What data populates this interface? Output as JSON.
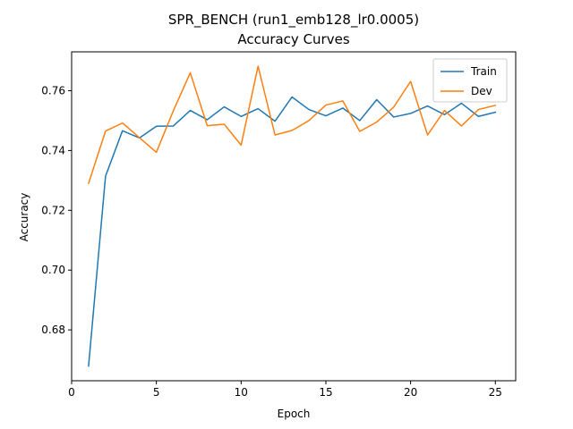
{
  "chart_data": {
    "type": "line",
    "title": "SPR_BENCH (run1_emb128_lr0.0005)",
    "subtitle": "Accuracy Curves",
    "xlabel": "Epoch",
    "ylabel": "Accuracy",
    "xlim": [
      0,
      26.2
    ],
    "ylim": [
      0.663,
      0.773
    ],
    "xticks": [
      0,
      5,
      10,
      15,
      20,
      25
    ],
    "yticks": [
      0.68,
      0.7,
      0.72,
      0.74,
      0.76
    ],
    "xtick_labels": [
      "0",
      "5",
      "10",
      "15",
      "20",
      "25"
    ],
    "ytick_labels": [
      "0.68",
      "0.70",
      "0.72",
      "0.74",
      "0.76"
    ],
    "grid": false,
    "legend_position": "top-right",
    "x": [
      1,
      2,
      3,
      4,
      5,
      6,
      7,
      8,
      9,
      10,
      11,
      12,
      13,
      14,
      15,
      16,
      17,
      18,
      19,
      20,
      21,
      22,
      23,
      24,
      25
    ],
    "series": [
      {
        "name": "Train",
        "color": "#1f77b4",
        "values": [
          0.6679,
          0.7314,
          0.7466,
          0.7442,
          0.7481,
          0.7482,
          0.7534,
          0.7503,
          0.7546,
          0.7514,
          0.754,
          0.7498,
          0.7579,
          0.7537,
          0.7516,
          0.7542,
          0.75,
          0.757,
          0.7512,
          0.7524,
          0.7549,
          0.752,
          0.7558,
          0.7514,
          0.7528
        ]
      },
      {
        "name": "Dev",
        "color": "#ff7f0e",
        "values": [
          0.729,
          0.7465,
          0.7492,
          0.7443,
          0.7394,
          0.7533,
          0.766,
          0.7483,
          0.7488,
          0.7418,
          0.7682,
          0.7452,
          0.7467,
          0.75,
          0.7552,
          0.7566,
          0.7464,
          0.7495,
          0.7545,
          0.7631,
          0.7452,
          0.7534,
          0.7482,
          0.7537,
          0.7551
        ]
      }
    ]
  }
}
